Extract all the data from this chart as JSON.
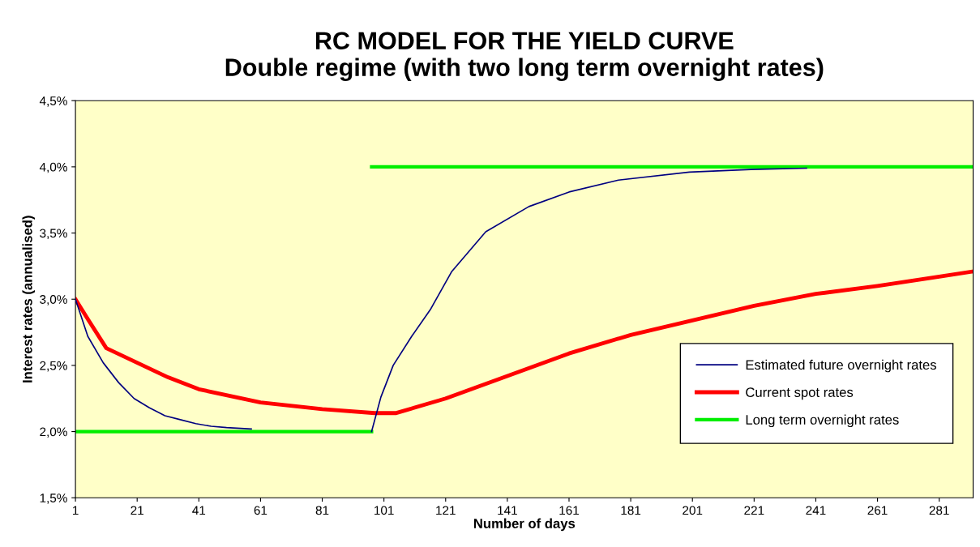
{
  "chart_data": {
    "type": "line",
    "title": "RC MODEL FOR THE YIELD CURVE\nDouble regime (with two long term overnight rates)",
    "xlabel": "Number of days",
    "ylabel": "Interest rates (annualised)",
    "series": [
      {
        "name": "Estimated future overnight rates",
        "color": "#000080",
        "x": [
          1,
          5,
          10,
          15,
          20,
          25,
          30,
          35,
          40,
          45,
          50,
          58,
          80,
          97,
          100,
          104,
          110,
          116,
          123,
          134,
          148,
          161,
          177,
          200,
          220,
          238
        ],
        "values": [
          3.0,
          2.72,
          2.52,
          2.37,
          2.25,
          2.18,
          2.12,
          2.09,
          2.06,
          2.04,
          2.03,
          2.02,
          null,
          2.0,
          2.26,
          2.5,
          2.72,
          2.92,
          3.21,
          3.51,
          3.7,
          3.81,
          3.9,
          3.96,
          3.98,
          3.99
        ]
      },
      {
        "name": "Current spot rates",
        "color": "#ff0000",
        "x": [
          1,
          5,
          11,
          21,
          31,
          41,
          61,
          81,
          98,
          105,
          121,
          141,
          161,
          181,
          201,
          221,
          241,
          261,
          281,
          292
        ],
        "values": [
          3.0,
          2.85,
          2.63,
          2.52,
          2.41,
          2.32,
          2.22,
          2.17,
          2.14,
          2.14,
          2.25,
          2.42,
          2.59,
          2.73,
          2.84,
          2.95,
          3.04,
          3.1,
          3.17,
          3.21
        ]
      },
      {
        "name": "Long term overnight rates",
        "color": "#00ee00",
        "x": [
          1,
          97
        ],
        "values": [
          2.0,
          2.0
        ]
      },
      {
        "color": "#00ee00",
        "x": [
          97,
          292
        ],
        "values": [
          4.0,
          4.0
        ]
      }
    ],
    "xlim": [
      1,
      292
    ],
    "xticks": [
      1,
      21,
      41,
      61,
      81,
      101,
      121,
      141,
      161,
      181,
      201,
      221,
      241,
      261,
      281
    ],
    "ylim": [
      1.5,
      4.5
    ],
    "yticks": [
      {
        "value": 1.5,
        "label": "1,5%"
      },
      {
        "value": 2.0,
        "label": "2,0%"
      },
      {
        "value": 2.5,
        "label": "2,5%"
      },
      {
        "value": 3.0,
        "label": "3,0%"
      },
      {
        "value": 3.5,
        "label": "3,5%"
      },
      {
        "value": 4.0,
        "label": "4,0%"
      },
      {
        "value": 4.5,
        "label": "4,5%"
      }
    ],
    "grid": false,
    "legend": "bottom right",
    "marker": "none",
    "line_style": "solid"
  }
}
